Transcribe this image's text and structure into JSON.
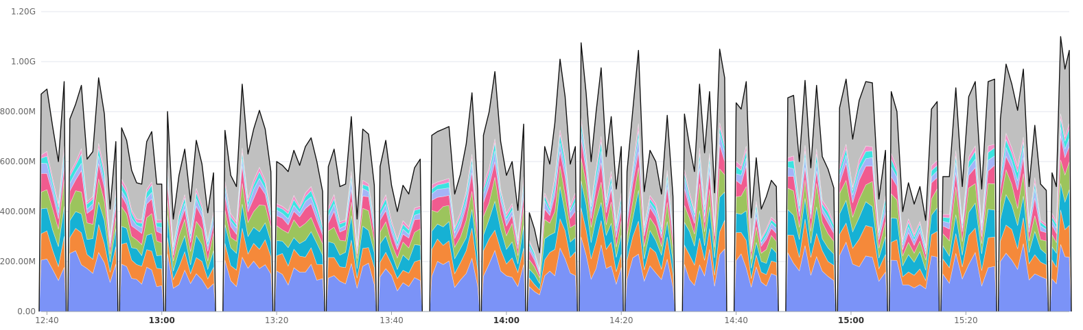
{
  "chart_data": {
    "type": "area",
    "stacked": true,
    "title": "",
    "xlabel": "",
    "ylabel": "",
    "ylim": [
      0,
      1200
    ],
    "y_ticks": [
      {
        "value": 0,
        "label": "0.00"
      },
      {
        "value": 200,
        "label": "200.00M"
      },
      {
        "value": 400,
        "label": "400.00M"
      },
      {
        "value": 600,
        "label": "600.00M"
      },
      {
        "value": 800,
        "label": "800.00M"
      },
      {
        "value": 1000,
        "label": "1.00G"
      },
      {
        "value": 1200,
        "label": "1.20G"
      }
    ],
    "x_ticks": [
      {
        "time": "12:40",
        "label": "12:40",
        "bold": false
      },
      {
        "time": "13:00",
        "label": "13:00",
        "bold": true
      },
      {
        "time": "13:20",
        "label": "13:20",
        "bold": false
      },
      {
        "time": "13:40",
        "label": "13:40",
        "bold": false
      },
      {
        "time": "14:00",
        "label": "14:00",
        "bold": true
      },
      {
        "time": "14:20",
        "label": "14:20",
        "bold": false
      },
      {
        "time": "14:40",
        "label": "14:40",
        "bold": false
      },
      {
        "time": "15:00",
        "label": "15:00",
        "bold": true
      },
      {
        "time": "15:20",
        "label": "15:20",
        "bold": false
      }
    ],
    "x_range": [
      "12:39",
      "15:38"
    ],
    "grid": true,
    "legend": "none",
    "series_colors": [
      "#7b93f7",
      "#f5893a",
      "#16b1d4",
      "#9cc45d",
      "#f05b8f",
      "#a4b4f7",
      "#3de3e0",
      "#f28fc7",
      "#c0c0c0"
    ],
    "segments": [
      {
        "start": "12:39",
        "end": "12:43",
        "total": [
          870,
          890,
          740,
          600,
          920
        ]
      },
      {
        "start": "12:44",
        "end": "12:52",
        "total": [
          770,
          830,
          905,
          610,
          640,
          935,
          790,
          410,
          680
        ]
      },
      {
        "start": "12:53",
        "end": "13:00",
        "total": [
          735,
          685,
          565,
          515,
          510,
          680,
          720,
          510,
          510
        ]
      },
      {
        "start": "13:01",
        "end": "13:09",
        "total": [
          800,
          370,
          545,
          650,
          440,
          685,
          590,
          395,
          555
        ]
      },
      {
        "start": "13:11",
        "end": "13:19",
        "total": [
          725,
          545,
          500,
          910,
          630,
          730,
          805,
          730,
          560
        ]
      },
      {
        "start": "13:20",
        "end": "13:28",
        "total": [
          600,
          585,
          560,
          645,
          585,
          660,
          695,
          600,
          480
        ]
      },
      {
        "start": "13:29",
        "end": "13:37",
        "total": [
          580,
          650,
          500,
          510,
          780,
          370,
          730,
          710,
          505
        ]
      },
      {
        "start": "13:38",
        "end": "13:45",
        "total": [
          580,
          685,
          505,
          400,
          505,
          470,
          575,
          610
        ]
      },
      {
        "start": "13:47",
        "end": "13:55",
        "total": [
          705,
          720,
          730,
          740,
          470,
          550,
          670,
          875,
          490
        ]
      },
      {
        "start": "13:56",
        "end": "14:03",
        "total": [
          705,
          800,
          960,
          680,
          545,
          600,
          405,
          750
        ]
      },
      {
        "start": "14:04",
        "end": "14:12",
        "total": [
          395,
          330,
          235,
          660,
          590,
          755,
          1010,
          860,
          590,
          660
        ]
      },
      {
        "start": "14:13",
        "end": "14:20",
        "total": [
          1075,
          875,
          600,
          800,
          975,
          620,
          780,
          490,
          660
        ]
      },
      {
        "start": "14:21",
        "end": "14:29",
        "total": [
          560,
          805,
          1045,
          480,
          645,
          600,
          470,
          785,
          460
        ]
      },
      {
        "start": "14:31",
        "end": "14:38",
        "total": [
          790,
          665,
          560,
          910,
          635,
          880,
          475,
          1050,
          935
        ]
      },
      {
        "start": "14:40",
        "end": "14:47",
        "total": [
          835,
          810,
          920,
          375,
          615,
          410,
          460,
          525,
          500
        ]
      },
      {
        "start": "14:49",
        "end": "14:57",
        "total": [
          855,
          865,
          600,
          925,
          575,
          905,
          620,
          570,
          495
        ]
      },
      {
        "start": "14:58",
        "end": "15:06",
        "total": [
          815,
          930,
          690,
          845,
          920,
          915,
          450,
          645
        ]
      },
      {
        "start": "15:07",
        "end": "15:15",
        "total": [
          880,
          800,
          400,
          515,
          430,
          500,
          365,
          810,
          840
        ]
      },
      {
        "start": "15:16",
        "end": "15:25",
        "total": [
          540,
          540,
          895,
          500,
          860,
          920,
          490,
          920,
          930
        ]
      },
      {
        "start": "15:26",
        "end": "15:34",
        "total": [
          770,
          990,
          910,
          805,
          970,
          500,
          745,
          510,
          485
        ]
      },
      {
        "start": "15:35",
        "end": "15:38",
        "total": [
          555,
          500,
          1100,
          970,
          1045
        ]
      }
    ]
  }
}
